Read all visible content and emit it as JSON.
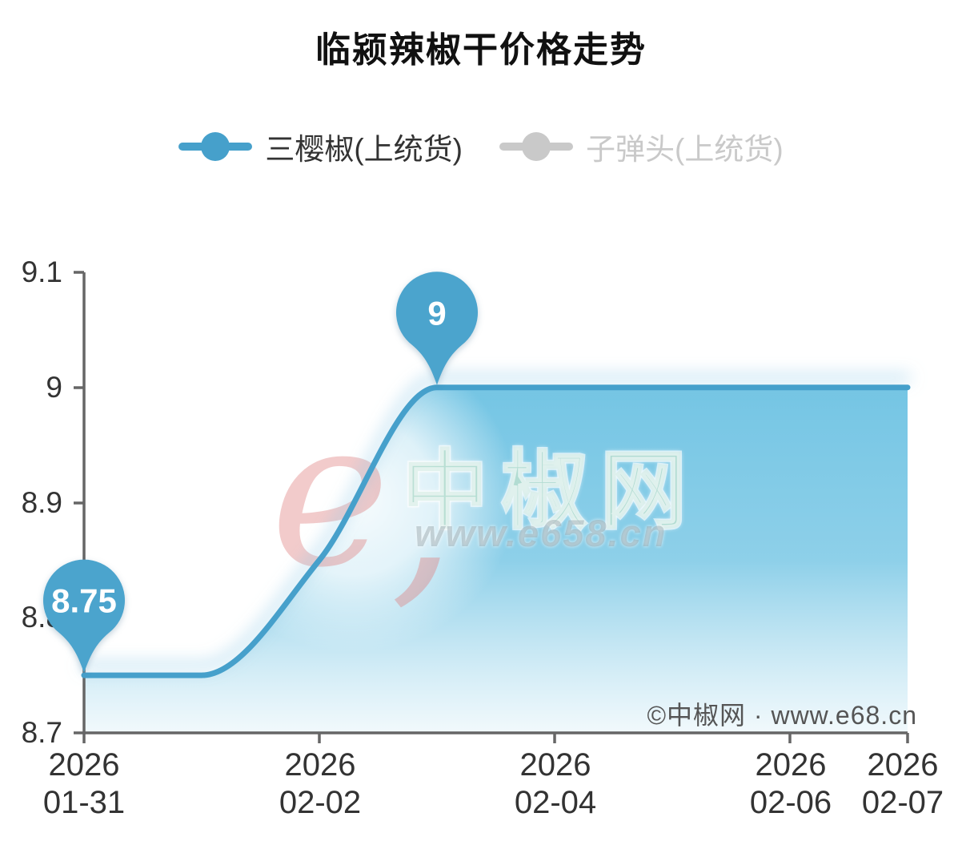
{
  "title": "临颍辣椒干价格走势",
  "legend": {
    "items": [
      {
        "label": "三樱椒(上统货)",
        "active": true
      },
      {
        "label": "子弹头(上统货)",
        "active": false
      }
    ]
  },
  "watermark": {
    "logo_text": "e",
    "logo_tail": ",",
    "brand": "中椒网",
    "url": "www.e658.cn"
  },
  "copyright": "©中椒网 · www.e68.cn",
  "colors": {
    "series_active": "#46a0cb",
    "series_inactive": "#c9c9c9",
    "marker_pin": "#4ba4cd",
    "marker_text": "#ffffff",
    "axis_line": "#666666",
    "tick_text": "#333333",
    "title_text": "#111111",
    "copyright_text": "#555555",
    "area_top": "#6fc3e3f5",
    "area_bottom": "#e8f5fa99",
    "watermark_red": "#de7d7d66",
    "watermark_jade": "#8fcbb799",
    "watermark_gray": "#8fa0a673"
  },
  "chart_data": {
    "type": "area",
    "title": "临颍辣椒干价格走势",
    "x": [
      "2026-01-31",
      "2026-02-01",
      "2026-02-02",
      "2026-02-03",
      "2026-02-04",
      "2026-02-05",
      "2026-02-06",
      "2026-02-07"
    ],
    "series": [
      {
        "name": "三樱椒(上统货)",
        "values": [
          8.75,
          8.75,
          8.85,
          9,
          9,
          9,
          9,
          9
        ],
        "color": "#46a0cb",
        "active": true
      },
      {
        "name": "子弹头(上统货)",
        "values": [],
        "color": "#c9c9c9",
        "active": false
      }
    ],
    "ylim": [
      8.7,
      9.1
    ],
    "y_ticks": [
      8.7,
      8.8,
      8.9,
      9,
      9.1
    ],
    "y_tick_labels": [
      "9.1",
      "9",
      "8.9",
      "8.8",
      "8.7"
    ],
    "x_tick_labels": [
      {
        "year": "2026",
        "date": "01-31"
      },
      {
        "year": "2026",
        "date": "02-02"
      },
      {
        "year": "2026",
        "date": "02-04"
      },
      {
        "year": "2026",
        "date": "02-06"
      },
      {
        "year": "2026",
        "date": "02-07"
      }
    ],
    "markers": [
      {
        "point_index": 0,
        "label": "8.75"
      },
      {
        "point_index": 3,
        "label": "9"
      }
    ],
    "legend_position": "top",
    "grid": false,
    "xlabel": "",
    "ylabel": ""
  }
}
